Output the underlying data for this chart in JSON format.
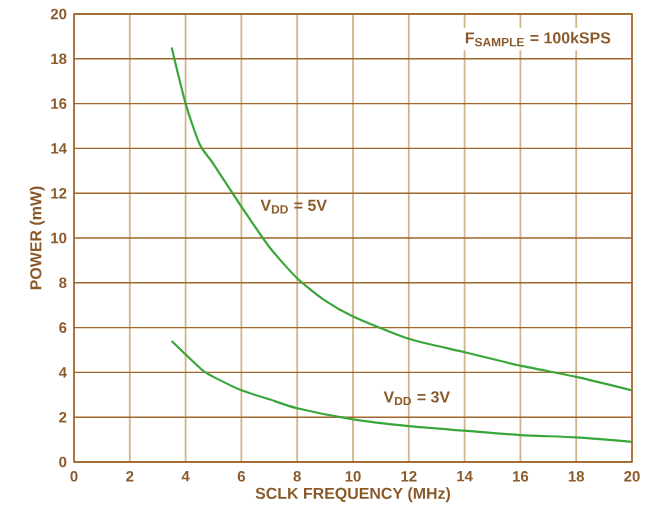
{
  "chart_data": {
    "type": "line",
    "xlabel": "SCLK FREQUENCY (MHz)",
    "ylabel": "POWER (mW)",
    "xlim": [
      0,
      20
    ],
    "ylim": [
      0,
      20
    ],
    "xticks": [
      0,
      2,
      4,
      6,
      8,
      10,
      12,
      14,
      16,
      18,
      20
    ],
    "yticks": [
      0,
      2,
      4,
      6,
      8,
      10,
      12,
      14,
      16,
      18,
      20
    ],
    "grid": true,
    "marker": "none",
    "line_style": "solid",
    "series": [
      {
        "name": "V$_{DD}$ = 5V",
        "color": "#3aa63a",
        "x": [
          3.5,
          4,
          4.5,
          5,
          6,
          7,
          8,
          9,
          10,
          12,
          14,
          16,
          18,
          20
        ],
        "values": [
          18.5,
          16,
          14.2,
          13.3,
          11.4,
          9.6,
          8.2,
          7.2,
          6.5,
          5.5,
          4.9,
          4.3,
          3.8,
          3.2
        ]
      },
      {
        "name": "V$_{DD}$ = 3V",
        "color": "#3aa63a",
        "x": [
          3.5,
          4,
          4.6,
          5,
          6,
          7,
          8,
          10,
          12,
          14,
          16,
          18,
          20
        ],
        "values": [
          5.4,
          4.8,
          4.1,
          3.8,
          3.2,
          2.8,
          2.4,
          1.9,
          1.6,
          1.4,
          1.2,
          1.1,
          0.9
        ]
      }
    ],
    "annotations": [
      "F$_{SAMPLE}$ = 100kSPS"
    ]
  }
}
